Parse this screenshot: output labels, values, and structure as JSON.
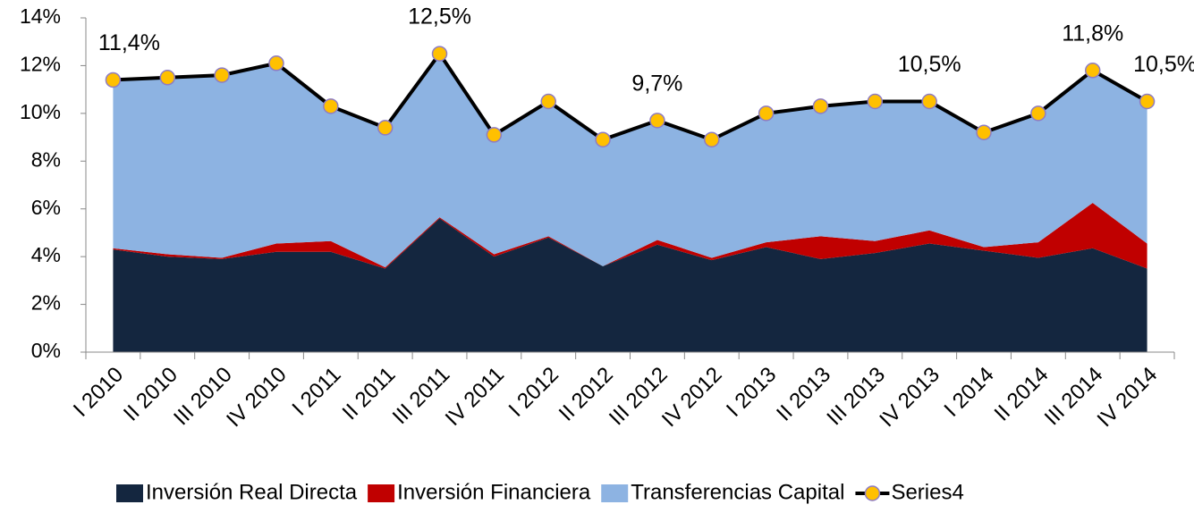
{
  "chart_data": {
    "type": "area",
    "categories": [
      "I 2010",
      "II 2010",
      "III 2010",
      "IV 2010",
      "I 2011",
      "II 2011",
      "III 2011",
      "IV 2011",
      "I 2012",
      "II 2012",
      "III 2012",
      "IV 2012",
      "I 2013",
      "II 2013",
      "III 2013",
      "IV 2013",
      "I 2014",
      "II 2014",
      "III 2014",
      "IV 2014"
    ],
    "series": [
      {
        "name": "Inversión Real Directa",
        "color": "#14263f",
        "values": [
          4.3,
          4.0,
          3.9,
          4.2,
          4.2,
          3.5,
          5.6,
          4.0,
          4.8,
          3.6,
          4.5,
          3.85,
          4.4,
          3.9,
          4.15,
          4.55,
          4.25,
          3.95,
          4.35,
          3.5
        ]
      },
      {
        "name": "Inversión Financiera",
        "color": "#c00000",
        "values": [
          0.05,
          0.1,
          0.05,
          0.35,
          0.45,
          0.05,
          0.05,
          0.1,
          0.05,
          0,
          0.2,
          0.1,
          0.2,
          0.95,
          0.5,
          0.55,
          0.15,
          0.65,
          1.9,
          1.05
        ]
      },
      {
        "name": "Transferencias Capital",
        "color": "#8db3e2",
        "values": [
          7.05,
          7.4,
          7.65,
          7.55,
          5.65,
          5.85,
          6.85,
          5.0,
          5.65,
          5.3,
          5.0,
          4.95,
          5.4,
          5.45,
          5.85,
          5.4,
          4.8,
          5.4,
          5.55,
          5.95
        ]
      },
      {
        "name": "Series4",
        "type": "line",
        "color": "#000000",
        "marker_color": "#ffc000",
        "values": [
          11.4,
          11.5,
          11.6,
          12.1,
          10.3,
          9.4,
          12.5,
          9.1,
          10.5,
          8.9,
          9.7,
          8.9,
          10.0,
          10.3,
          10.5,
          10.5,
          9.2,
          10.0,
          11.8,
          10.5
        ],
        "value_labels": [
          "11,4%",
          null,
          null,
          null,
          null,
          null,
          "12,5%",
          null,
          null,
          null,
          "9,7%",
          null,
          null,
          null,
          null,
          "10,5%",
          null,
          null,
          "11,8%",
          "10,5%"
        ]
      }
    ],
    "ylim": [
      0,
      14
    ],
    "yticks": [
      {
        "value": 0,
        "label": "0%"
      },
      {
        "value": 2,
        "label": "2%"
      },
      {
        "value": 4,
        "label": "4%"
      },
      {
        "value": 6,
        "label": "6%"
      },
      {
        "value": 8,
        "label": "8%"
      },
      {
        "value": 10,
        "label": "10%"
      },
      {
        "value": 12,
        "label": "12%"
      },
      {
        "value": 14,
        "label": "14%"
      }
    ],
    "legend": "bottom"
  }
}
